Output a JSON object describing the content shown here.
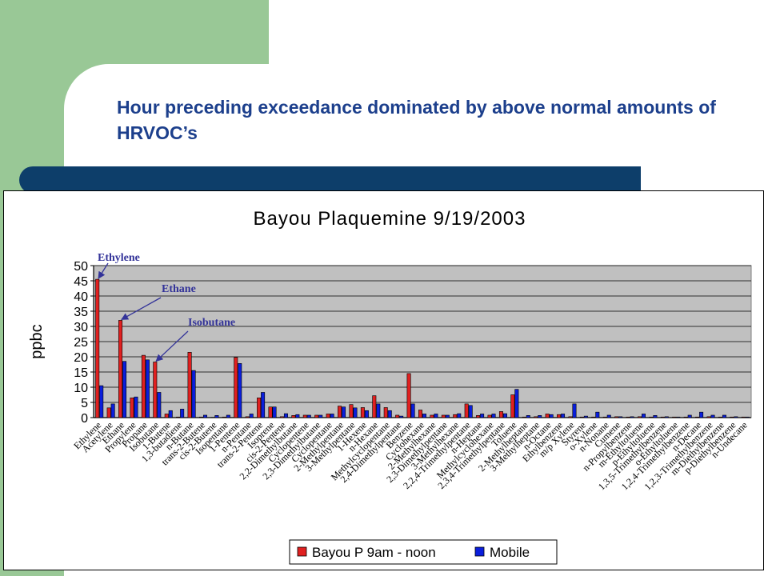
{
  "slide": {
    "title": "Hour preceding exceedance dominated by above normal amounts of HRVOC’s"
  },
  "colors": {
    "green_panel": "#99c896",
    "header_bar": "#0d3e6a",
    "title_text": "#1c3f8c",
    "plot_bg": "#c0c0c0",
    "series_1": "#e02020",
    "series_2": "#0a1edc",
    "annotation": "#333399"
  },
  "chart_data": {
    "type": "bar",
    "title": "Bayou Plaquemine 9/19/2003",
    "ylabel": "ppbc",
    "xlabel": "",
    "ylim": [
      0,
      50
    ],
    "yticks": [
      0,
      5,
      10,
      15,
      20,
      25,
      30,
      35,
      40,
      45,
      50
    ],
    "grid": true,
    "legend_position": "bottom",
    "categories": [
      "Ethylene",
      "Acetylene",
      "Ethane",
      "Propylene",
      "Propane",
      "Isobutane",
      "1-Butene",
      "1,3-butadiene",
      "n-Butane",
      "trans-2-Butene",
      "cis-2-Butene",
      "Isopentane",
      "1-Pentene",
      "n-Pentane",
      "trans-2-Pentene",
      "Isoprene",
      "cis-2-Pentene",
      "2,2-Dimethylbutane",
      "Cyclopentene",
      "2,3-Dimethylbutane",
      "Cyclopentane",
      "2-Methylpentane",
      "3-Methylpentane",
      "1-Hexene",
      "n-Hexane",
      "Methylcyclopentane",
      "2,4-Dimethylpentane",
      "Benzene",
      "Cyclohexane",
      "2-Methylhexane",
      "2,3-Dimethylpentane",
      "3-Methylhexane",
      "2,2,4-Trimethylpentane",
      "n-Heptane",
      "Methylcyclohexane",
      "2,3,4-Trimethylpentane",
      "Toluene",
      "2-Methylheptane",
      "3-Methylheptane",
      "n-Octane",
      "Ethylbenzene",
      "m/p Xylene",
      "Styrene",
      "o-Xylene",
      "n-Nonane",
      "Cumene",
      "n-Propylbenzene",
      "m-Ethyltoluene",
      "p-Ethyltoluene",
      "1,3,5-Trimethylbenzene",
      "o-Ethyltoluene",
      "1,2,4-Trimethylbenzene",
      "n-Decane",
      "1,2,3-Trimethylbenzene",
      "m-Diethylbenzene",
      "p-Diethylbenzene",
      "n-Undecane"
    ],
    "tick_labels_drawn": [
      "Ethylene",
      "Acetylene",
      "Ethane",
      "Propylene",
      "Propane",
      "Isobutane",
      "1-Butene",
      "1,3-butadiene",
      "n-Butane",
      "trans-2-Butene",
      "cis-2-Butene",
      "Isopentane",
      "1-Pentene",
      "n-Pentane",
      "trans-2-Pentene",
      "Isoprene",
      "cis-2-Pentene",
      "2,2-Dimethylbutane",
      "Cyclopentene",
      "2,3-Dimethylbutane",
      "Cyclopentane",
      "2-Methylpentane",
      "3-Methylpentane",
      "1-Hexene",
      "n-Hexane",
      "Methylcyclopentane",
      "2,4-Dimethylpentane",
      "Benzene",
      "Cyclohexane",
      "2-Methylhexane",
      "2,3-Dimethylpentane",
      "3-Methylhexane",
      "2,2,4-Trimethylpentane",
      "n-Heptane",
      "Methylcyclohexane",
      "2,3,4-Trimethylpentane",
      "Toluene",
      "2-Methylheptane",
      "3-Methylheptane",
      "n-Octane",
      "Ethylbenzene",
      "m/p Xylene",
      "Styrene",
      "o-Xylene",
      "n-Nonane",
      "Cumene",
      "n-Propylbenzene",
      "m-Ethyltoluene",
      "p-Ethyltoluene",
      "1,3,5-Trimethylbenzene",
      "o-Ethyltoluene",
      "1,2,4-Trimethylbenzene",
      "n-Decane",
      "1,2,3-Trimethylbenzene",
      "m-Diethylbenzene",
      "p-Diethylbenzene",
      "n-Undecane"
    ],
    "series": [
      {
        "name": "Bayou P 9am - noon",
        "values": [
          45.5,
          3.2,
          32,
          6.5,
          20.5,
          18.3,
          1.2,
          0.2,
          21.5,
          0.2,
          0.1,
          0.2,
          19.8,
          0.3,
          6.5,
          3.5,
          0.3,
          0.7,
          0.8,
          0.8,
          1.2,
          3.8,
          4.3,
          3.3,
          7.2,
          3.3,
          0.8,
          14.5,
          2.5,
          0.8,
          0.8,
          1.0,
          4.5,
          0.7,
          0.8,
          2.0,
          7.5,
          0.2,
          0.3,
          1.2,
          1.0,
          0.3,
          0.2,
          0.2,
          0.2,
          0.3,
          0.2,
          0.3,
          0.2,
          0.2,
          0.2,
          0.2,
          0.2,
          0.3,
          0.2,
          0.2,
          0.2
        ]
      },
      {
        "name": "Mobile",
        "values": [
          10.5,
          4.5,
          18.5,
          6.8,
          19,
          8.3,
          2.3,
          2.8,
          15.5,
          0.8,
          0.7,
          0.8,
          17.8,
          1.2,
          8.3,
          3.5,
          1.3,
          1.0,
          0.8,
          0.8,
          1.2,
          3.5,
          3.2,
          2.3,
          4.5,
          2.3,
          0.5,
          4.5,
          1.2,
          1.2,
          0.8,
          1.3,
          4.0,
          1.2,
          1.2,
          1.3,
          9.3,
          0.7,
          0.7,
          1.0,
          1.2,
          4.5,
          0.5,
          1.8,
          0.8,
          0.3,
          0.3,
          1.2,
          0.7,
          0.3,
          0.2,
          0.8,
          1.8,
          0.8,
          0.8,
          0.3,
          0.2
        ]
      }
    ],
    "annotations": [
      {
        "text": "Ethylene",
        "target_category": "Ethylene",
        "target_series": "Bayou P 9am - noon"
      },
      {
        "text": "Ethane",
        "target_category": "Ethane",
        "target_series": "Bayou P 9am - noon"
      },
      {
        "text": "Isobutane",
        "target_category": "Isobutane",
        "target_series": "Bayou P 9am - noon"
      }
    ]
  }
}
